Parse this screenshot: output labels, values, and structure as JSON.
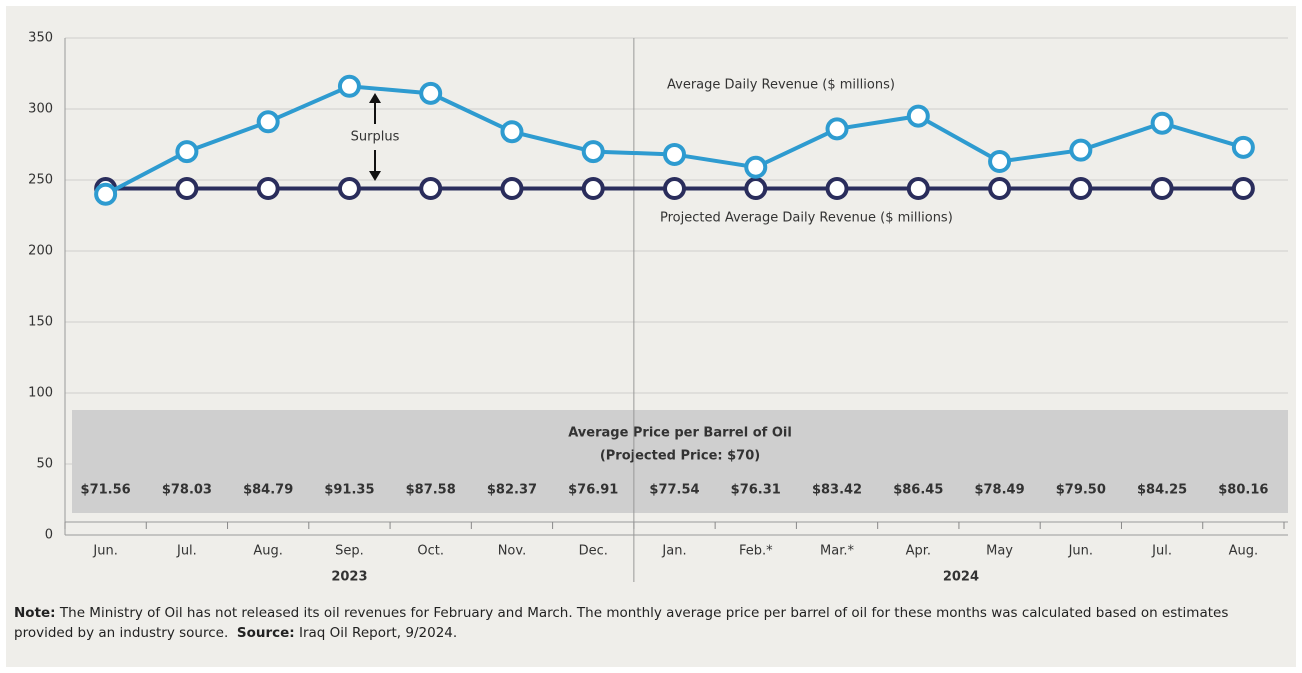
{
  "chart_data": {
    "type": "line",
    "categories": [
      "Jun.",
      "Jul.",
      "Aug.",
      "Sep.",
      "Oct.",
      "Nov.",
      "Dec.",
      "Jan.",
      "Feb.*",
      "Mar.*",
      "Apr.",
      "May",
      "Jun.",
      "Jul.",
      "Aug."
    ],
    "years": [
      "2023",
      "2024"
    ],
    "series": [
      {
        "name": "Average Daily Revenue ($ millions)",
        "color": "#2e9bd0",
        "values": [
          240,
          270,
          291,
          316,
          311,
          284,
          270,
          268,
          259,
          286,
          295,
          263,
          271,
          290,
          273
        ]
      },
      {
        "name": "Projected Average Daily Revenue ($ millions)",
        "color": "#2a2d5c",
        "values": [
          244,
          244,
          244,
          244,
          244,
          244,
          244,
          244,
          244,
          244,
          244,
          244,
          244,
          244,
          244
        ]
      }
    ],
    "ylim": [
      0,
      350
    ],
    "yticks": [
      0,
      50,
      100,
      150,
      200,
      250,
      300,
      350
    ],
    "grid": true,
    "annotation": "Surplus",
    "price_title": "Average Price per Barrel of Oil",
    "price_subtitle": "(Projected Price: $70)",
    "prices": [
      "$71.56",
      "$78.03",
      "$84.79",
      "$91.35",
      "$87.58",
      "$82.37",
      "$76.91",
      "$77.54",
      "$76.31",
      "$83.42",
      "$86.45",
      "$78.49",
      "$79.50",
      "$84.25",
      "$80.16"
    ]
  },
  "note": {
    "label": "Note:",
    "text": "The Ministry of Oil has not released its oil revenues for February and March. The monthly average price per barrel of oil for these months was calculated based on estimates provided by an industry source.",
    "source_label": "Source:",
    "source": "Iraq Oil Report, 9/2024."
  }
}
